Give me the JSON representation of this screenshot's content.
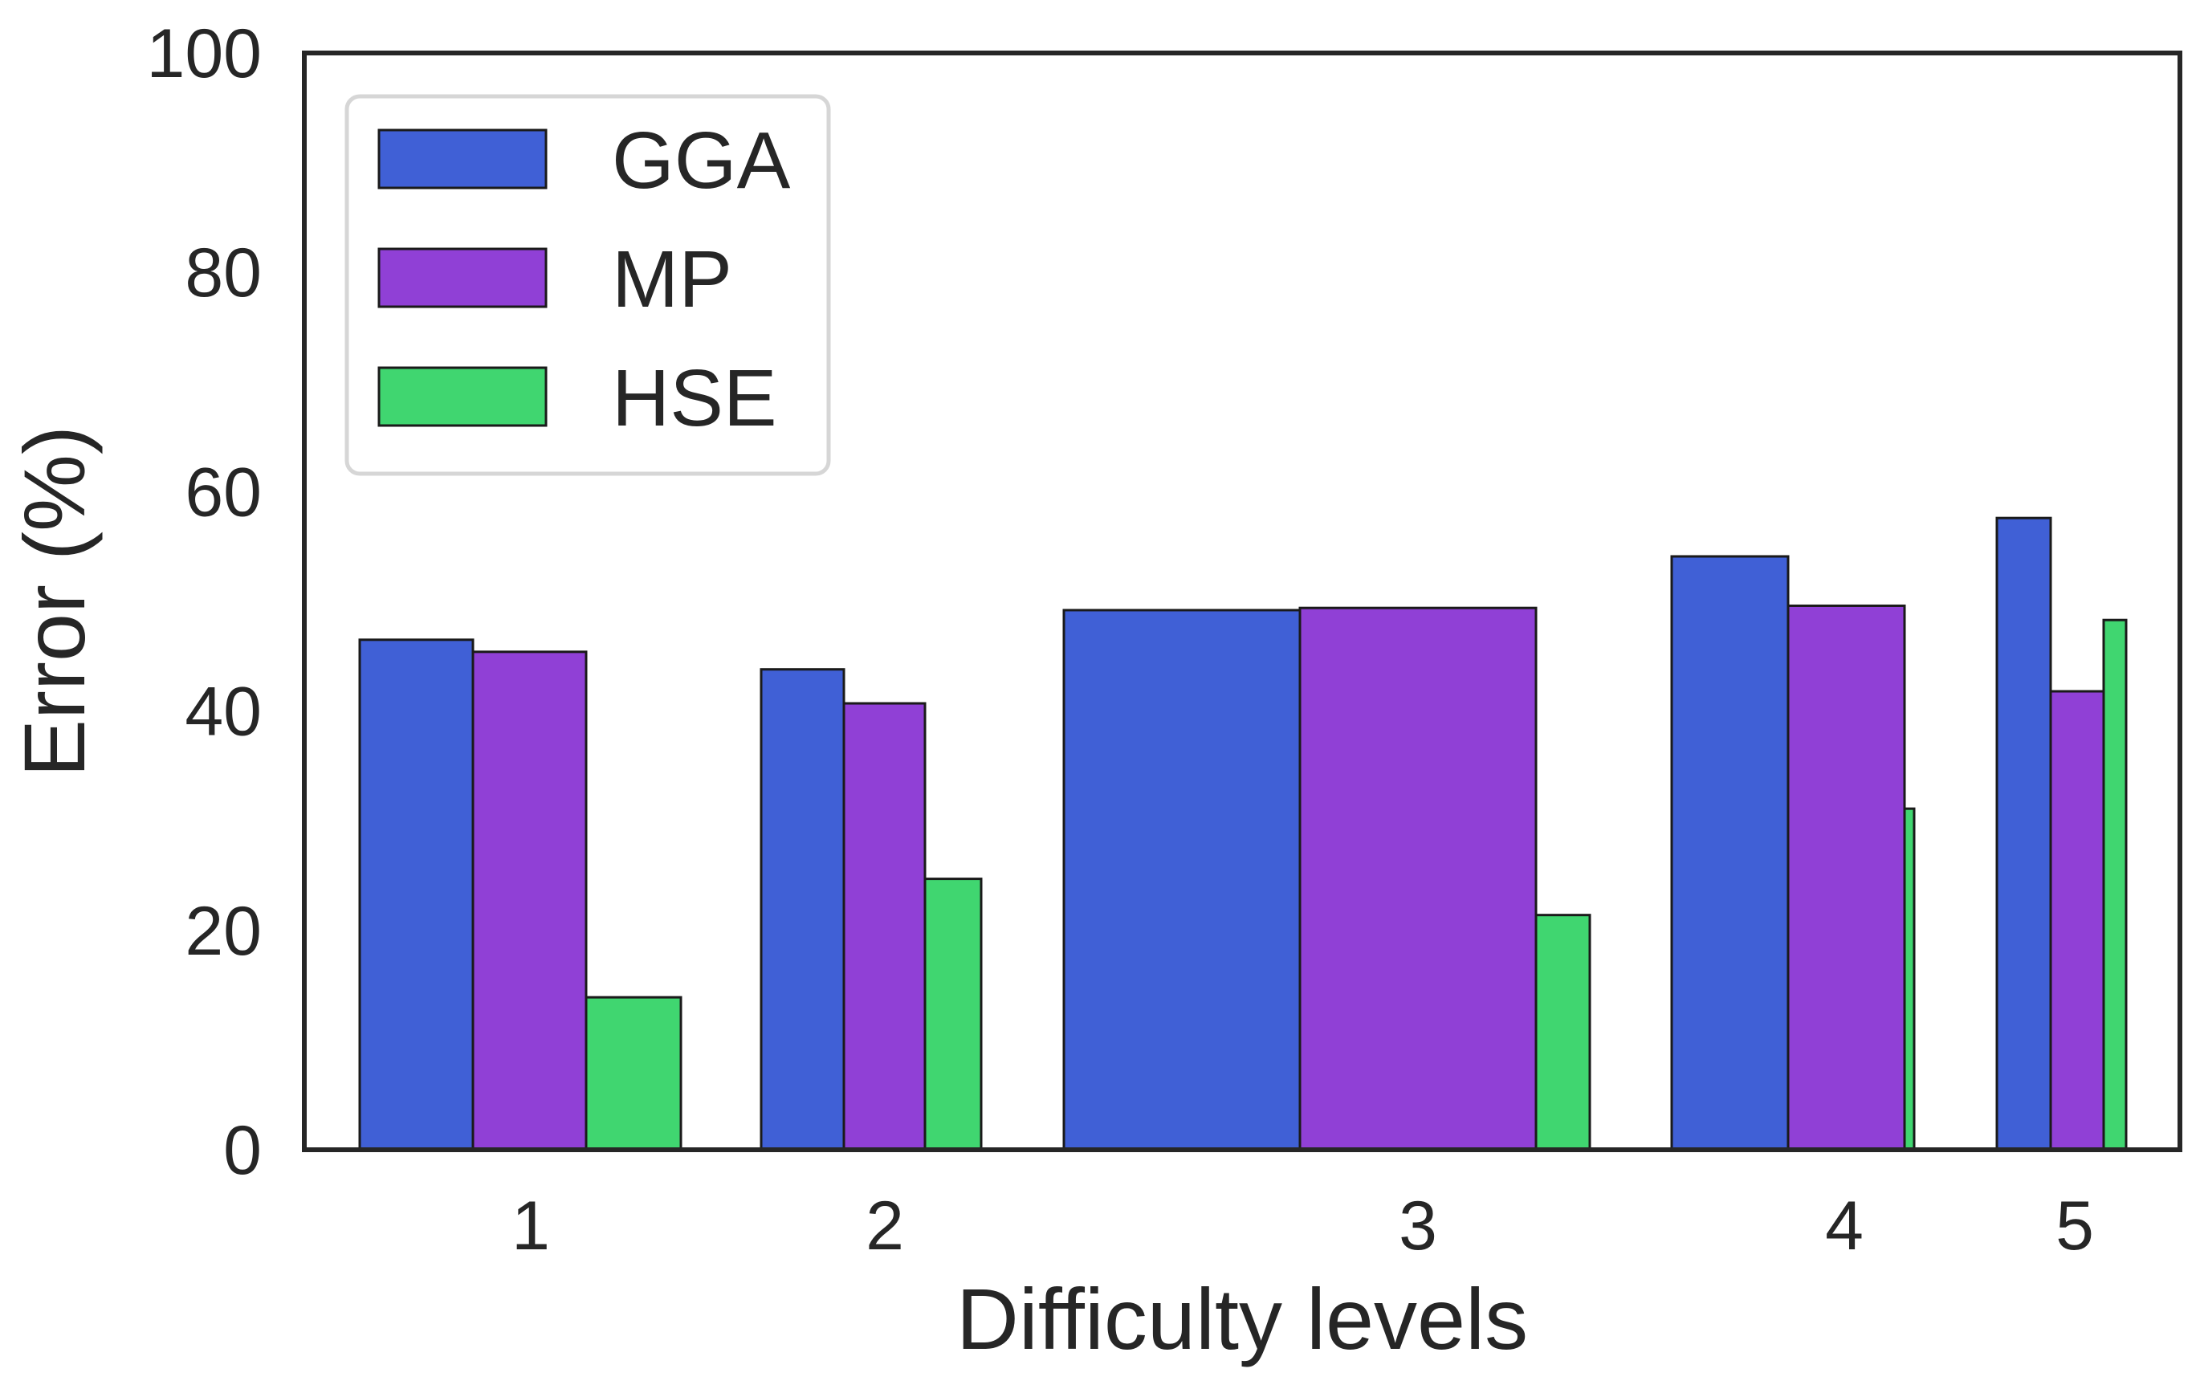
{
  "chart_data": {
    "type": "bar",
    "title": "",
    "xlabel": "Difficulty levels",
    "ylabel": "Error (%)",
    "ylim": [
      0,
      100
    ],
    "yticks": [
      0,
      20,
      40,
      60,
      80,
      100
    ],
    "grid": false,
    "legend_position": "top-left",
    "categories": [
      "1",
      "2",
      "3",
      "4",
      "5"
    ],
    "series": [
      {
        "name": "GGA",
        "color": "#4060d6",
        "values": [
          46.5,
          43.8,
          49.2,
          54.1,
          57.6
        ]
      },
      {
        "name": "MP",
        "color": "#9040d6",
        "values": [
          45.4,
          40.7,
          49.4,
          49.6,
          41.8
        ]
      },
      {
        "name": "HSE",
        "color": "#40d670",
        "values": [
          13.9,
          24.7,
          21.4,
          31.1,
          48.3
        ]
      }
    ]
  }
}
